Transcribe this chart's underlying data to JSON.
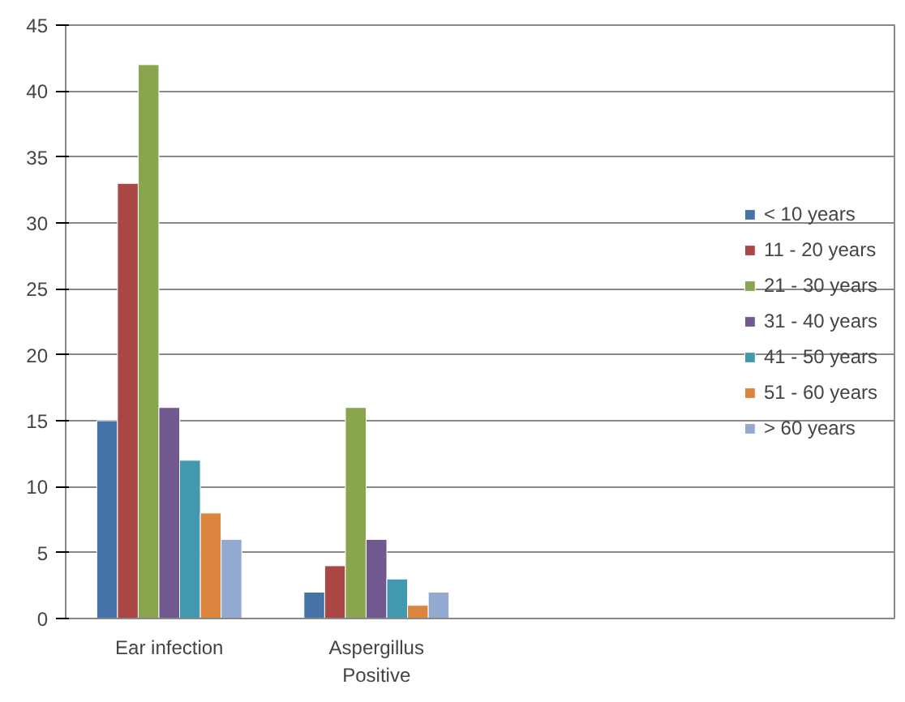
{
  "chart_data": {
    "type": "bar",
    "categories": [
      "Ear infection",
      "Aspergillus\nPositive",
      null,
      null
    ],
    "series": [
      {
        "name": "< 10 years",
        "color": "#4572a7",
        "values": [
          15,
          2,
          null,
          null
        ]
      },
      {
        "name": "11 - 20 years",
        "color": "#aa4643",
        "values": [
          33,
          4,
          null,
          null
        ]
      },
      {
        "name": "21 - 30 years",
        "color": "#89a54e",
        "values": [
          42,
          16,
          null,
          null
        ]
      },
      {
        "name": "31 - 40 years",
        "color": "#71588f",
        "values": [
          16,
          6,
          null,
          null
        ]
      },
      {
        "name": "41 - 50 years",
        "color": "#4198af",
        "values": [
          12,
          3,
          null,
          null
        ]
      },
      {
        "name": "51 - 60 years",
        "color": "#db843d",
        "values": [
          8,
          1,
          null,
          null
        ]
      },
      {
        "name": "> 60 years",
        "color": "#93a9cf",
        "values": [
          6,
          2,
          null,
          null
        ]
      }
    ],
    "ylim": [
      0,
      45
    ],
    "yticks": [
      0,
      5,
      10,
      15,
      20,
      25,
      30,
      35,
      40,
      45
    ],
    "grid": "y",
    "legend": "right"
  }
}
